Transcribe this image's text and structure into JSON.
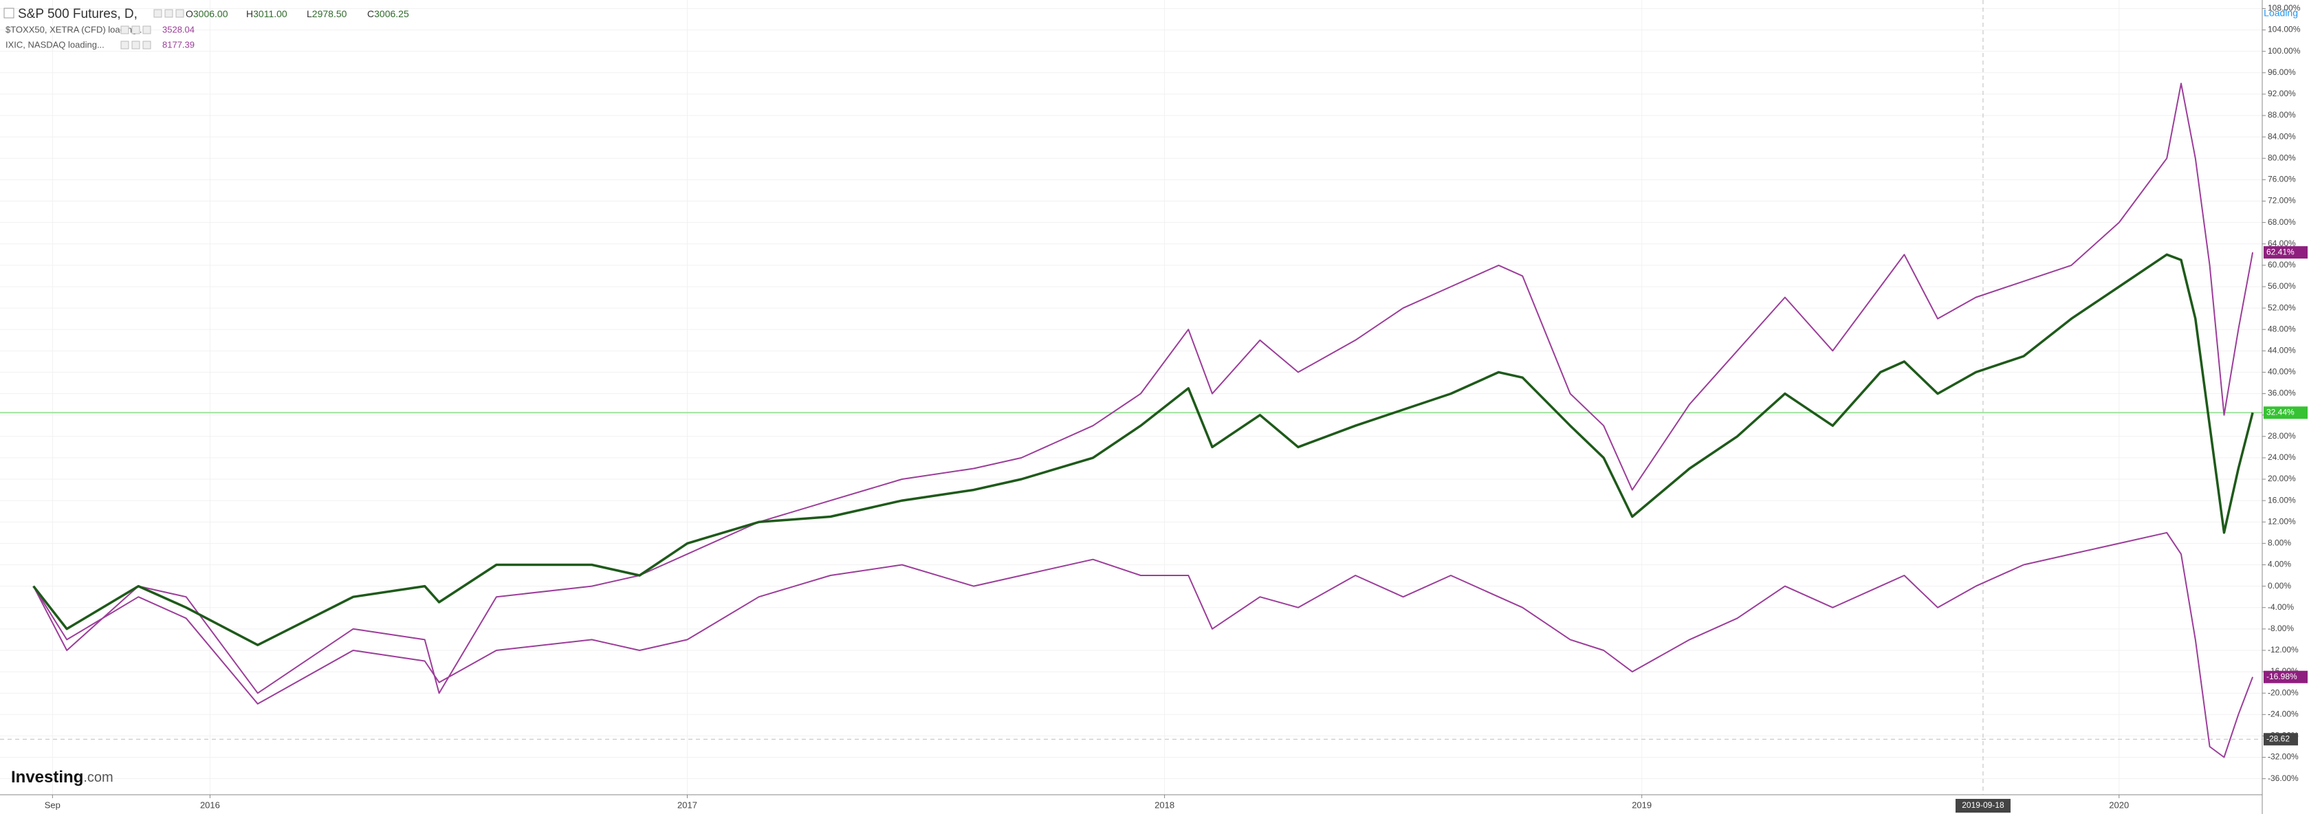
{
  "chart_data": {
    "type": "line",
    "x": [
      2015.63,
      2015.7,
      2015.85,
      2015.95,
      2016.1,
      2016.3,
      2016.45,
      2016.48,
      2016.6,
      2016.8,
      2016.9,
      2017.0,
      2017.15,
      2017.3,
      2017.45,
      2017.6,
      2017.7,
      2017.85,
      2017.95,
      2018.05,
      2018.1,
      2018.2,
      2018.28,
      2018.4,
      2018.5,
      2018.6,
      2018.7,
      2018.75,
      2018.85,
      2018.92,
      2018.98,
      2019.1,
      2019.2,
      2019.3,
      2019.4,
      2019.5,
      2019.55,
      2019.62,
      2019.7,
      2019.8,
      2019.9,
      2020.0,
      2020.1,
      2020.13,
      2020.16,
      2020.19,
      2020.22,
      2020.25,
      2020.28
    ],
    "series": [
      {
        "name": "S&P 500 Futures, D,",
        "color": "#1e5a1a",
        "ohlc": [
          {
            "name": "O",
            "value": 3006,
            "label": "3006.00"
          },
          {
            "name": "H",
            "value": 3011,
            "label": "3011.00"
          },
          {
            "name": "L",
            "value": 2978.5,
            "label": "2978.50"
          },
          {
            "name": "C",
            "value": 3006.25,
            "label": "3006.25"
          }
        ],
        "values": [
          0,
          -8,
          0,
          -4,
          -11,
          -2,
          0,
          -3,
          4,
          4,
          2,
          8,
          12,
          13,
          16,
          18,
          20,
          24,
          30,
          37,
          26,
          32,
          26,
          30,
          33,
          36,
          40,
          39,
          30,
          24,
          13,
          22,
          28,
          36,
          30,
          40,
          42,
          36,
          40,
          43,
          50,
          56,
          62,
          61,
          50,
          30,
          10,
          22,
          32.44
        ]
      },
      {
        "name": "$TOXX50, XETRA (CFD) loading...",
        "color": "#9c3d9a",
        "last": 3528.04,
        "values": [
          0,
          -10,
          -2,
          -6,
          -22,
          -12,
          -14,
          -18,
          -12,
          -10,
          -12,
          -10,
          -2,
          2,
          4,
          0,
          2,
          5,
          2,
          2,
          -8,
          -2,
          -4,
          2,
          -2,
          2,
          -2,
          -4,
          -10,
          -12,
          -16,
          -10,
          -6,
          0,
          -4,
          0,
          2,
          -4,
          0,
          4,
          6,
          8,
          10,
          6,
          -10,
          -30,
          -32,
          -24,
          -16.98
        ]
      },
      {
        "name": "IXIC, NASDAQ loading...",
        "color": "#9c3d9a",
        "last": 8177.39,
        "values": [
          0,
          -12,
          0,
          -2,
          -20,
          -8,
          -10,
          -20,
          -2,
          0,
          2,
          6,
          12,
          16,
          20,
          22,
          24,
          30,
          36,
          48,
          36,
          46,
          40,
          46,
          52,
          56,
          60,
          58,
          36,
          30,
          18,
          34,
          44,
          54,
          44,
          56,
          62,
          50,
          54,
          57,
          60,
          68,
          80,
          94,
          80,
          60,
          32,
          48,
          62.41
        ]
      }
    ],
    "xlim": [
      2015.56,
      2020.3
    ],
    "xticks": [
      {
        "value": 2015.67,
        "label": "Sep"
      },
      2016,
      2017,
      2018,
      2019,
      2020
    ],
    "ylim": [
      -39,
      109.6
    ],
    "yticks": [
      {
        "value": -36,
        "label": "-36.00%"
      },
      {
        "value": -32,
        "label": "-32.00%"
      },
      {
        "value": -28,
        "label": "-28.00%"
      },
      {
        "value": -24,
        "label": "-24.00%"
      },
      {
        "value": -20,
        "label": "-20.00%"
      },
      {
        "value": -16,
        "label": "-16.00%"
      },
      {
        "value": -12,
        "label": "-12.00%"
      },
      {
        "value": -8,
        "label": "-8.00%"
      },
      {
        "value": -4,
        "label": "-4.00%"
      },
      {
        "value": 0,
        "label": "0.00%"
      },
      {
        "value": 4,
        "label": "4.00%"
      },
      {
        "value": 8,
        "label": "8.00%"
      },
      {
        "value": 12,
        "label": "12.00%"
      },
      {
        "value": 16,
        "label": "16.00%"
      },
      {
        "value": 20,
        "label": "20.00%"
      },
      {
        "value": 24,
        "label": "24.00%"
      },
      {
        "value": 28,
        "label": "28.00%"
      },
      {
        "value": 32,
        "label": "32.00%"
      },
      {
        "value": 36,
        "label": "36.00%"
      },
      {
        "value": 40,
        "label": "40.00%"
      },
      {
        "value": 44,
        "label": "44.00%"
      },
      {
        "value": 48,
        "label": "48.00%"
      },
      {
        "value": 52,
        "label": "52.00%"
      },
      {
        "value": 56,
        "label": "56.00%"
      },
      {
        "value": 60,
        "label": "60.00%"
      },
      {
        "value": 64,
        "label": "64.00%"
      },
      {
        "value": 68,
        "label": "68.00%"
      },
      {
        "value": 72,
        "label": "72.00%"
      },
      {
        "value": 76,
        "label": "76.00%"
      },
      {
        "value": 80,
        "label": "80.00%"
      },
      {
        "value": 84,
        "label": "84.00%"
      },
      {
        "value": 88,
        "label": "88.00%"
      },
      {
        "value": 92,
        "label": "92.00%"
      },
      {
        "value": 96,
        "label": "96.00%"
      },
      {
        "value": 100,
        "label": "100.00%"
      },
      {
        "value": 104,
        "label": "104.00%"
      },
      {
        "value": 108,
        "label": "108.00%"
      }
    ],
    "grid": true,
    "price_labels": [
      {
        "value": 62.41,
        "label": "62.41%",
        "color": "#8e1f7e"
      },
      {
        "value": 32.44,
        "label": "32.44%",
        "color": "#36c233"
      },
      {
        "value": -16.98,
        "label": "-16.98%",
        "color": "#8e1f7e"
      }
    ],
    "crosshair": {
      "x": 2019.715,
      "x_label": "2019-09-18",
      "y": -28.62,
      "y_label": "-28.62"
    },
    "status": "Loading",
    "logo": {
      "brand": "Investing",
      "suffix": ".com"
    }
  }
}
